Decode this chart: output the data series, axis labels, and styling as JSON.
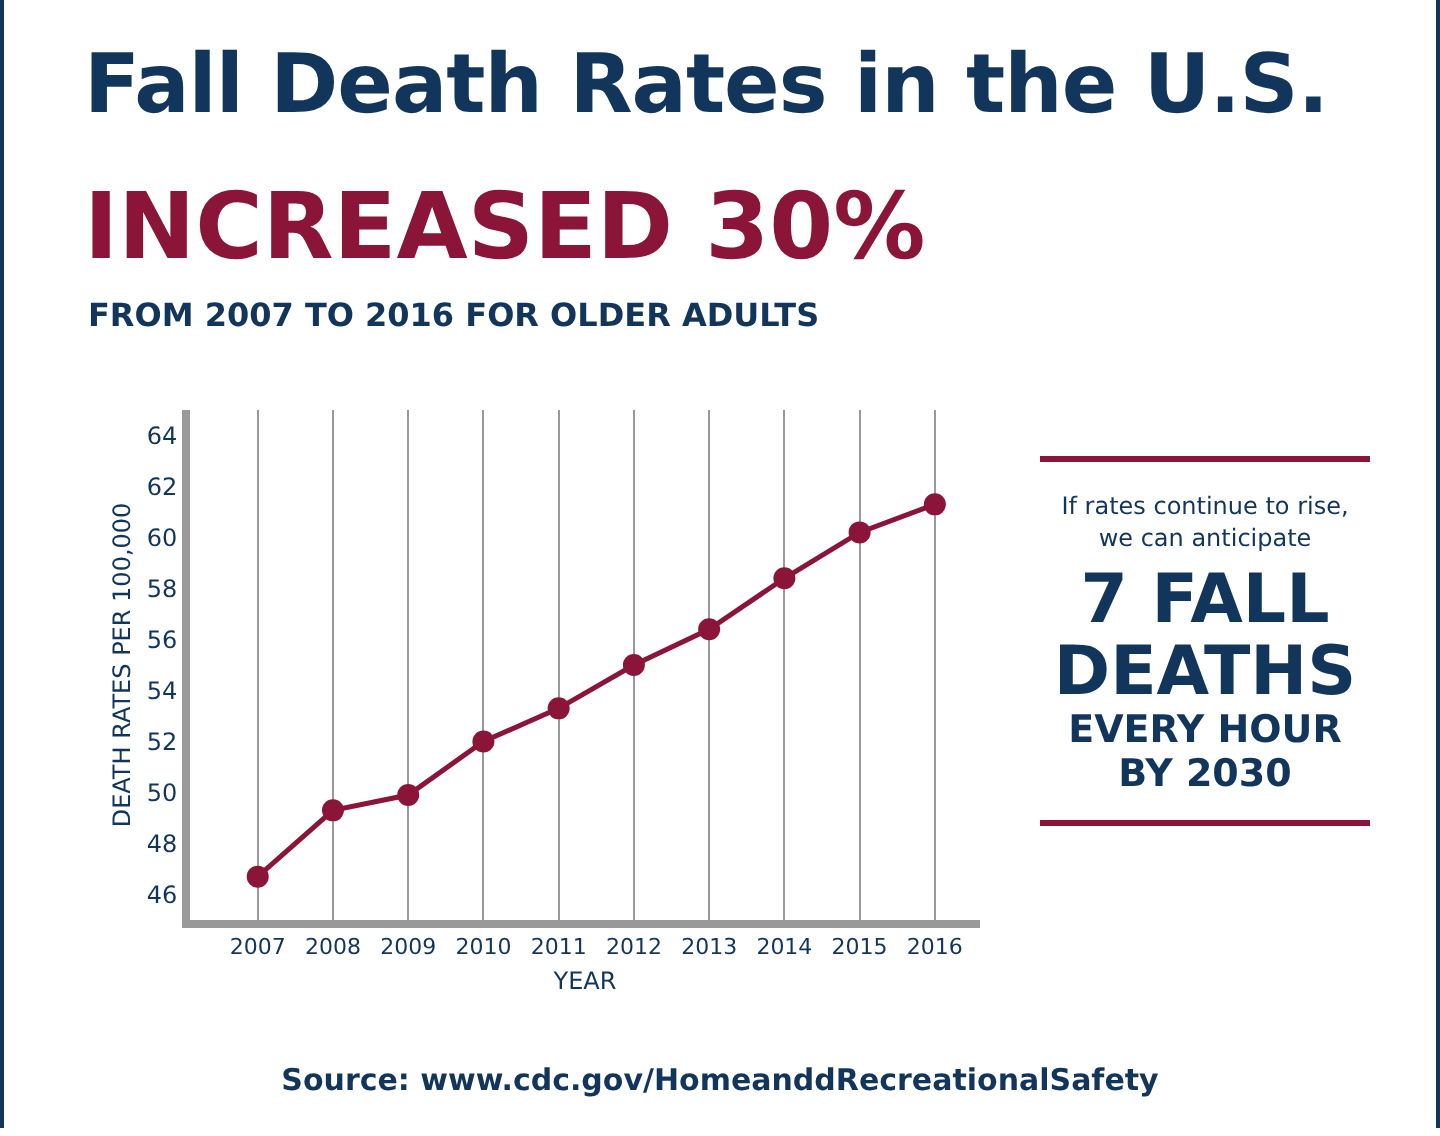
{
  "chart_data": {
    "type": "line",
    "title": "Fall Death Rates in the U.S.",
    "subtitle": "INCREASED 30%",
    "xlabel": "YEAR",
    "ylabel": "DEATH RATES PER 100,000",
    "categories": [
      "2007",
      "2008",
      "2009",
      "2010",
      "2011",
      "2012",
      "2013",
      "2014",
      "2015",
      "2016"
    ],
    "series": [
      {
        "color": "#8a1538",
        "values": [
          46.7,
          49.3,
          49.9,
          52.0,
          53.3,
          55.0,
          56.4,
          58.4,
          60.2,
          61.3
        ]
      }
    ],
    "ylim": [
      45,
      65
    ],
    "yticks": [
      46,
      48,
      50,
      52,
      54,
      56,
      58,
      60,
      62,
      64
    ],
    "grid": "x",
    "marker": "circle",
    "line_style": "solid",
    "annotations": [
      "FROM 2007 TO 2016 FOR OLDER ADULTS",
      "If rates continue to rise, we can anticipate",
      "7 FALL DEATHS",
      "EVERY HOUR BY 2030",
      "Source: www.cdc.gov/HomeanddRecreationalSafety"
    ]
  }
}
